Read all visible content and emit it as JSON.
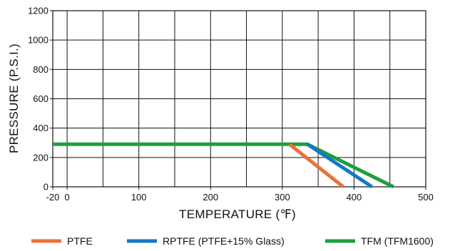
{
  "chart_data": {
    "type": "line",
    "title": "",
    "xlabel": "TEMPERATURE (℉)",
    "ylabel": "PRESSURE (P.S.I.)",
    "xlim": [
      -20,
      500
    ],
    "ylim": [
      0,
      1200
    ],
    "x_ticks": [
      -20,
      0,
      100,
      200,
      300,
      400,
      500
    ],
    "y_ticks": [
      0,
      200,
      400,
      600,
      800,
      1000,
      1200
    ],
    "x_tick_labels": [
      "-20",
      "0",
      "100",
      "200",
      "300",
      "400",
      "500"
    ],
    "y_tick_labels": [
      "0",
      "200",
      "400",
      "600",
      "800",
      "1000",
      "1200"
    ],
    "x_grid": [
      -20,
      0,
      50,
      100,
      150,
      200,
      250,
      300,
      350,
      400,
      450,
      500
    ],
    "y_grid": [
      0,
      200,
      400,
      600,
      800,
      1000,
      1200
    ],
    "grid": true,
    "legend_position": "bottom",
    "series": [
      {
        "name": "TFM (TFM1600)",
        "color": "#1e9e3e",
        "points": [
          [
            -20,
            290
          ],
          [
            335,
            290
          ],
          [
            455,
            0
          ]
        ]
      },
      {
        "name": "RPTFE (PTFE+15% Glass)",
        "color": "#1577c7",
        "points": [
          [
            335,
            290
          ],
          [
            425,
            0
          ]
        ]
      },
      {
        "name": "PTFE",
        "color": "#e8733a",
        "points": [
          [
            310,
            290
          ],
          [
            385,
            0
          ]
        ]
      }
    ],
    "legend": [
      {
        "name": "PTFE",
        "color": "#e8733a"
      },
      {
        "name": "RPTFE (PTFE+15% Glass)",
        "color": "#1577c7"
      },
      {
        "name": "TFM (TFM1600)",
        "color": "#1e9e3e"
      }
    ]
  }
}
